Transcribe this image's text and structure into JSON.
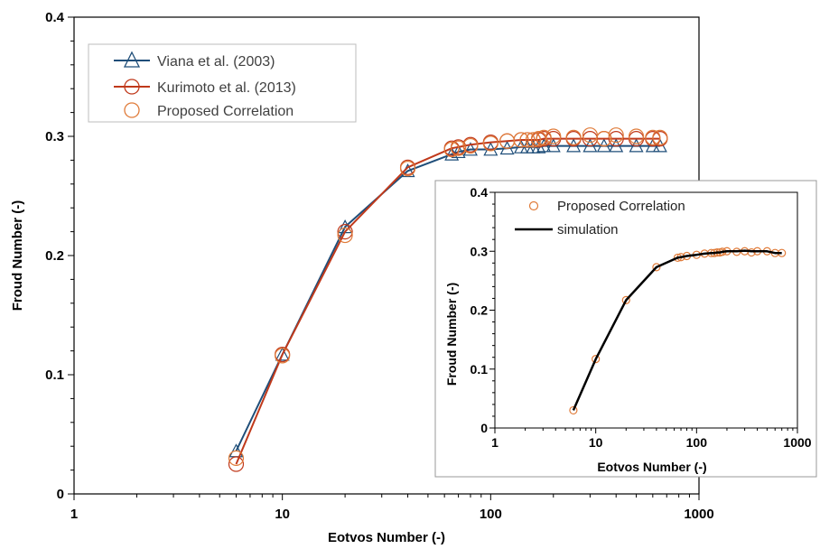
{
  "chart_data": [
    {
      "type": "line",
      "title": "",
      "xlabel": "Eotvos Number (-)",
      "ylabel": "Froud Number (-)",
      "xscale": "log",
      "xlim": [
        1,
        1000
      ],
      "ylim": [
        0,
        0.4
      ],
      "x_ticks": [
        "1",
        "10",
        "100",
        "1000"
      ],
      "y_ticks": [
        "0",
        "0.1",
        "0.2",
        "0.3",
        "0.4"
      ],
      "grid": false,
      "legend_position": "top-left",
      "series": [
        {
          "name": "Viana et al. (2003)",
          "color": "#1f4e79",
          "marker": "triangle",
          "line": true,
          "x": [
            6,
            10,
            20,
            40,
            65,
            70,
            80,
            100,
            120,
            140,
            150,
            160,
            170,
            180,
            200,
            250,
            300,
            350,
            400,
            500,
            600,
            650
          ],
          "y": [
            0.036,
            0.117,
            0.224,
            0.271,
            0.285,
            0.287,
            0.289,
            0.289,
            0.29,
            0.291,
            0.291,
            0.291,
            0.291,
            0.292,
            0.292,
            0.292,
            0.292,
            0.292,
            0.292,
            0.292,
            0.292,
            0.292
          ]
        },
        {
          "name": "Kurimoto et al. (2013)",
          "color": "#c0391b",
          "marker": "circle",
          "line": true,
          "x": [
            6,
            10,
            20,
            40,
            65,
            70,
            80,
            100,
            120,
            140,
            150,
            160,
            170,
            180,
            200,
            250,
            300,
            350,
            400,
            500,
            600,
            650
          ],
          "y": [
            0.025,
            0.117,
            0.22,
            0.274,
            0.29,
            0.291,
            0.293,
            0.295,
            0.296,
            0.297,
            0.297,
            0.297,
            0.297,
            0.298,
            0.298,
            0.298,
            0.298,
            0.298,
            0.298,
            0.298,
            0.298,
            0.298
          ]
        },
        {
          "name": "Proposed Correlation",
          "color": "#e07b39",
          "marker": "circle",
          "line": false,
          "x": [
            6,
            10,
            20,
            40,
            65,
            70,
            80,
            100,
            120,
            140,
            150,
            160,
            170,
            180,
            200,
            250,
            300,
            350,
            400,
            500,
            600,
            650
          ],
          "y": [
            0.03,
            0.116,
            0.217,
            0.273,
            0.289,
            0.29,
            0.292,
            0.294,
            0.296,
            0.297,
            0.297,
            0.297,
            0.298,
            0.299,
            0.3,
            0.299,
            0.301,
            0.298,
            0.301,
            0.3,
            0.299,
            0.299
          ]
        }
      ]
    },
    {
      "type": "line",
      "title": "",
      "xlabel": "Eotvos Number (-)",
      "ylabel": "Froud Number (-)",
      "xscale": "log",
      "xlim": [
        1,
        1000
      ],
      "ylim": [
        0,
        0.4
      ],
      "x_ticks": [
        "1",
        "10",
        "100",
        "1000"
      ],
      "y_ticks": [
        "0",
        "0.1",
        "0.2",
        "0.3",
        "0.4"
      ],
      "grid": false,
      "legend_position": "top-left",
      "series": [
        {
          "name": "Proposed Correlation",
          "color": "#e07b39",
          "marker": "circle",
          "line": false,
          "x": [
            6,
            10,
            20,
            40,
            65,
            70,
            80,
            100,
            120,
            140,
            150,
            160,
            170,
            180,
            200,
            250,
            300,
            350,
            400,
            500,
            600,
            700
          ],
          "y": [
            0.03,
            0.117,
            0.217,
            0.273,
            0.289,
            0.29,
            0.292,
            0.294,
            0.296,
            0.297,
            0.297,
            0.298,
            0.298,
            0.299,
            0.3,
            0.299,
            0.3,
            0.298,
            0.3,
            0.3,
            0.297,
            0.297
          ]
        },
        {
          "name": "simulation",
          "color": "#000000",
          "marker": "none",
          "line": true,
          "x": [
            6,
            10,
            20,
            40,
            65,
            70,
            80,
            100,
            120,
            140,
            150,
            160,
            170,
            180,
            200,
            250,
            300,
            350,
            400,
            500,
            600,
            700
          ],
          "y": [
            0.03,
            0.117,
            0.217,
            0.273,
            0.289,
            0.29,
            0.292,
            0.294,
            0.296,
            0.297,
            0.297,
            0.298,
            0.298,
            0.299,
            0.3,
            0.3,
            0.301,
            0.3,
            0.3,
            0.3,
            0.297,
            0.297
          ]
        }
      ]
    }
  ]
}
